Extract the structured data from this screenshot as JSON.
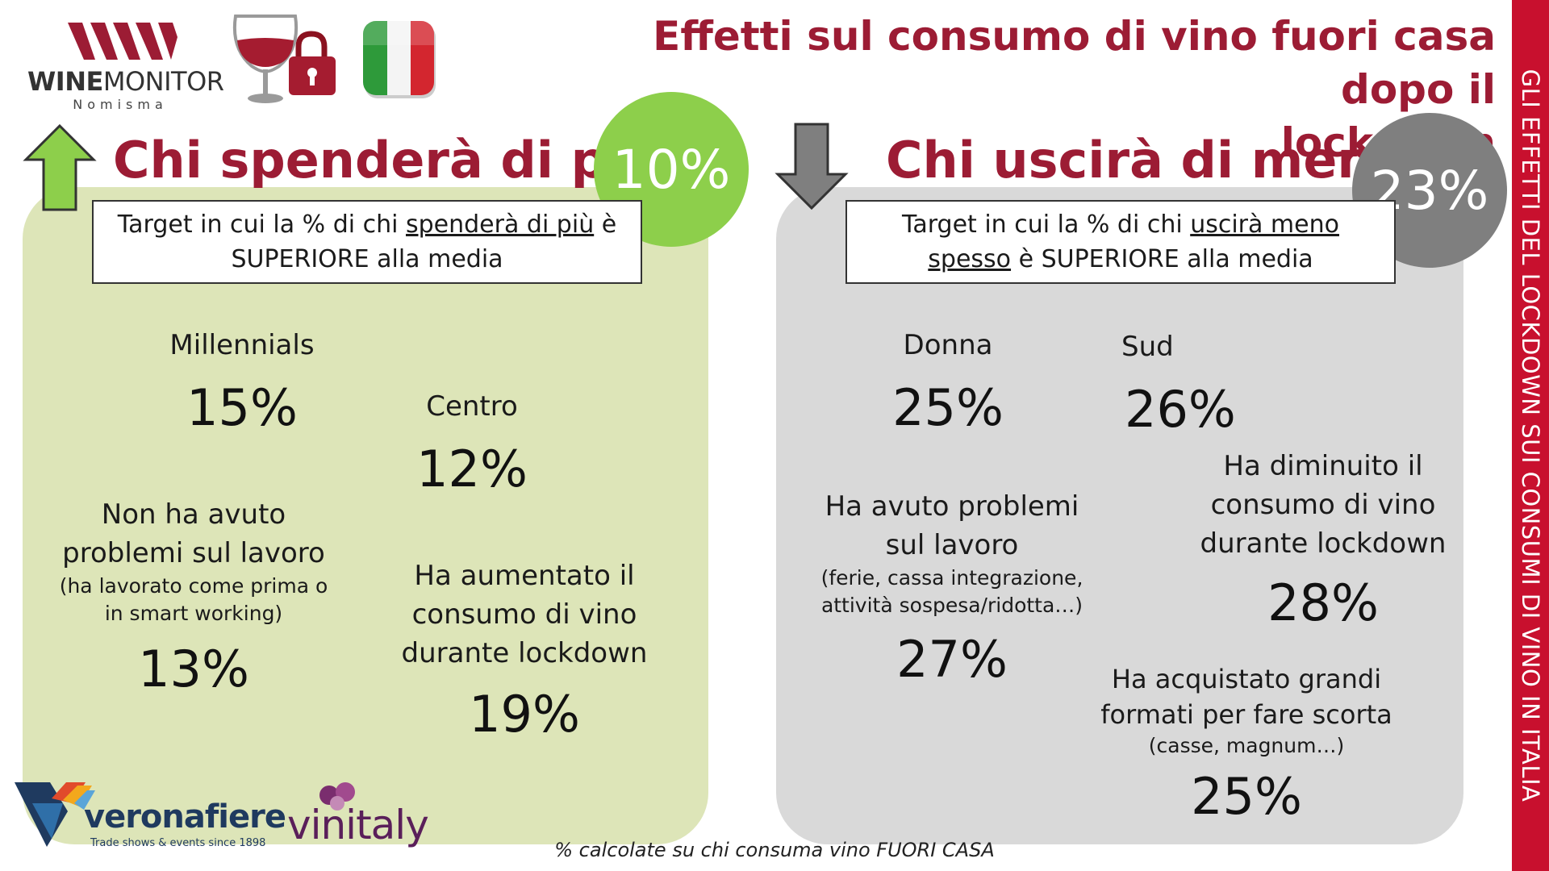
{
  "header": {
    "title_line1": "Effetti sul consumo di vino fuori casa dopo  il",
    "title_line2": "lockdown"
  },
  "side_banner": {
    "text": "GLI EFFETTI DEL LOCKDOWN SUI CONSUMI DI VINO  IN ITALIA"
  },
  "logos": {
    "winemonitor_bold": "WINE",
    "winemonitor_rest": "MONITOR",
    "winemonitor_sub": "Nomisma",
    "veronafiere": "veronafiere",
    "veronafiere_tagline": "Trade shows & events since 1898",
    "vinitaly": "vinitaly"
  },
  "left": {
    "heading": "Chi spenderà di più",
    "circle_value": "10%",
    "target_pre": "Target in cui la % di chi ",
    "target_ul": "spenderà di più",
    "target_post": " è",
    "target_line2": "SUPERIORE alla media",
    "stats": [
      {
        "label": "Millennials",
        "value": "15%"
      },
      {
        "label": "Centro",
        "value": "12%"
      },
      {
        "label_line1": "Non ha avuto",
        "label_line2": "problemi sul lavoro",
        "sub_line1": "(ha lavorato come prima o",
        "sub_line2": "in smart working)",
        "value": "13%"
      },
      {
        "label_line1": "Ha aumentato il",
        "label_line2": "consumo di vino",
        "label_line3": "durante lockdown",
        "value": "19%"
      }
    ]
  },
  "right": {
    "heading": "Chi uscirà di meno",
    "circle_value": "23%",
    "target_pre": "Target in cui la % di chi ",
    "target_ul": "uscirà meno",
    "target_ul2": "spesso",
    "target_line2_post": " è SUPERIORE alla media",
    "stats": [
      {
        "label": "Donna",
        "value": "25%"
      },
      {
        "label": "Sud",
        "value": "26%"
      },
      {
        "label_line1": "Ha avuto problemi",
        "label_line2": "sul lavoro",
        "sub_line1": "(ferie, cassa integrazione,",
        "sub_line2": "attività sospesa/ridotta…)",
        "value": "27%"
      },
      {
        "label_line1": "Ha diminuito il",
        "label_line2": "consumo di vino",
        "label_line3": "durante lockdown",
        "value": "28%"
      },
      {
        "label_line1": "Ha acquistato grandi",
        "label_line2": "formati per fare scorta",
        "sub_line1": "(casse, magnum…)",
        "value": "25%"
      }
    ]
  },
  "footnote": "% calcolate su chi consuma vino FUORI CASA",
  "colors": {
    "brand_red": "#9c1c34",
    "banner_red": "#c8102e",
    "green_panel": "#dde5b8",
    "green_circle": "#8dcf4b",
    "grey_panel": "#d9d9d9",
    "grey_circle": "#7f7f7f"
  },
  "icons": [
    "winemonitor-logo",
    "wine-glass-lock-icon",
    "italy-flag-icon",
    "arrow-up-icon",
    "arrow-down-icon",
    "veronafiere-logo",
    "vinitaly-logo"
  ]
}
